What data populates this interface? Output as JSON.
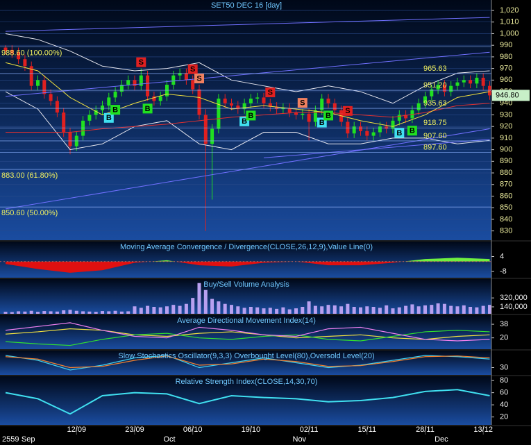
{
  "chart_data": [
    {
      "type": "candlestick",
      "title": "SET50 DEC 16  [day]",
      "grid": true,
      "ylim": [
        822,
        1029
      ],
      "yticks": [
        830,
        840,
        850,
        860,
        870,
        880,
        890,
        900,
        910,
        920,
        930,
        940,
        950,
        960,
        970,
        980,
        990,
        {
          "value": 1000,
          "label": "1,000"
        },
        {
          "value": 1010,
          "label": "1,010"
        },
        {
          "value": 1020,
          "label": "1,020"
        }
      ],
      "up_color": "#20e020",
      "down_color": "#e02020",
      "categories": [
        null,
        null,
        null,
        null,
        null,
        null,
        null,
        null,
        null,
        null,
        null,
        "12/09",
        null,
        null,
        null,
        null,
        null,
        null,
        null,
        null,
        "23/09",
        null,
        null,
        null,
        null,
        null,
        null,
        null,
        null,
        "06/10",
        null,
        null,
        null,
        null,
        null,
        null,
        null,
        null,
        "19/10",
        null,
        null,
        null,
        null,
        null,
        null,
        null,
        null,
        "02/11",
        null,
        null,
        null,
        null,
        null,
        null,
        null,
        null,
        "15/11",
        null,
        null,
        null,
        null,
        null,
        null,
        null,
        null,
        "28/11",
        null,
        null,
        null,
        null,
        null,
        null,
        null,
        null,
        "13/12",
        null
      ],
      "months": [
        "2559",
        null,
        null,
        "Sep",
        null,
        null,
        null,
        null,
        null,
        null,
        null,
        null,
        null,
        null,
        null,
        null,
        null,
        null,
        null,
        null,
        null,
        null,
        null,
        null,
        null,
        "Oct",
        null,
        null,
        null,
        null,
        null,
        null,
        null,
        null,
        null,
        null,
        null,
        null,
        null,
        null,
        null,
        null,
        null,
        null,
        null,
        "Nov",
        null,
        null,
        null,
        null,
        null,
        null,
        null,
        null,
        null,
        null,
        null,
        null,
        null,
        null,
        null,
        null,
        null,
        null,
        null,
        null,
        null,
        "Dec",
        null,
        null,
        null,
        null,
        null,
        null,
        null,
        null
      ],
      "open": [
        988,
        986,
        984,
        978,
        972,
        955,
        960,
        948,
        942,
        932,
        915,
        903,
        912,
        925,
        930,
        934,
        938,
        945,
        950,
        956,
        960,
        955,
        964,
        946,
        942,
        946,
        956,
        964,
        966,
        960,
        952,
        930,
        905,
        918,
        944,
        940,
        938,
        935,
        940,
        944,
        945,
        940,
        937,
        935,
        936,
        932,
        930,
        931,
        924,
        934,
        944,
        940,
        934,
        924,
        914,
        920,
        916,
        912,
        915,
        920,
        918,
        925,
        930,
        927,
        934,
        940,
        946,
        952,
        956,
        950,
        955,
        958,
        960,
        957,
        962,
        955
      ],
      "high": [
        990,
        990,
        988,
        982,
        976,
        964,
        964,
        952,
        946,
        936,
        919,
        916,
        929,
        934,
        938,
        942,
        949,
        954,
        960,
        964,
        964,
        970,
        968,
        950,
        950,
        960,
        968,
        970,
        970,
        964,
        956,
        935,
        922,
        948,
        948,
        944,
        942,
        944,
        948,
        949,
        949,
        944,
        941,
        940,
        940,
        936,
        935,
        935,
        938,
        948,
        948,
        944,
        938,
        928,
        924,
        924,
        920,
        919,
        924,
        924,
        929,
        934,
        934,
        938,
        944,
        950,
        956,
        960,
        960,
        959,
        962,
        964,
        964,
        966,
        966,
        959
      ],
      "low": [
        982,
        979,
        974,
        968,
        951,
        951,
        944,
        938,
        928,
        911,
        896,
        899,
        908,
        921,
        926,
        930,
        934,
        941,
        946,
        952,
        951,
        951,
        942,
        938,
        938,
        942,
        952,
        960,
        956,
        948,
        926,
        830,
        857,
        914,
        936,
        934,
        931,
        931,
        936,
        940,
        936,
        933,
        931,
        931,
        928,
        926,
        926,
        908,
        920,
        930,
        936,
        930,
        920,
        910,
        910,
        912,
        908,
        908,
        911,
        914,
        914,
        921,
        923,
        923,
        930,
        936,
        942,
        948,
        946,
        946,
        951,
        954,
        953,
        953,
        951,
        943
      ],
      "close": [
        985,
        983,
        978,
        972,
        955,
        960,
        948,
        942,
        932,
        915,
        903,
        912,
        925,
        930,
        934,
        938,
        945,
        950,
        956,
        960,
        955,
        964,
        946,
        942,
        946,
        956,
        964,
        966,
        960,
        952,
        930,
        905,
        918,
        944,
        940,
        938,
        935,
        940,
        944,
        945,
        940,
        937,
        935,
        936,
        932,
        930,
        931,
        924,
        934,
        944,
        940,
        934,
        924,
        914,
        920,
        916,
        912,
        915,
        920,
        918,
        925,
        930,
        927,
        934,
        940,
        946,
        952,
        956,
        950,
        955,
        958,
        960,
        957,
        962,
        955,
        946.8
      ],
      "overlays": {
        "x": [
          0,
          5,
          10,
          15,
          20,
          25,
          30,
          35,
          40,
          45,
          50,
          55,
          60,
          65,
          70,
          75
        ],
        "series": [
          {
            "color": "#e8e8f0",
            "values": [
              1000,
              995,
              985,
              972,
              968,
              970,
              975,
              960,
              955,
              950,
              955,
              950,
              940,
              955,
              966,
              968
            ]
          },
          {
            "color": "#e8e8f0",
            "values": [
              950,
              935,
              900,
              905,
              920,
              925,
              905,
              900,
              915,
              915,
              905,
              905,
              910,
              910,
              905,
              908
            ]
          },
          {
            "color": "#e03030",
            "values": [
              915,
              915,
              915,
              918,
              920,
              922,
              925,
              928,
              930,
              932,
              932,
              930,
              928,
              932,
              938,
              940
            ]
          },
          {
            "color": "#f0e040",
            "values": [
              975,
              968,
              945,
              930,
              940,
              948,
              945,
              935,
              938,
              935,
              932,
              925,
              920,
              930,
              945,
              950
            ]
          }
        ]
      },
      "trend_color": "#7070ff",
      "trend_lines": [
        {
          "x": [
            0,
            75
          ],
          "values": [
            1002,
            1014
          ]
        },
        {
          "x": [
            0,
            75
          ],
          "values": [
            946,
            984
          ]
        },
        {
          "x": [
            0,
            75
          ],
          "values": [
            849,
            918
          ]
        },
        {
          "x": [
            40,
            75
          ],
          "values": [
            893,
            909
          ]
        }
      ],
      "level_color": "#f0f060",
      "level_line_color": "#8ab0ff",
      "retracements": [
        {
          "value": 988.6,
          "label": "988.60 (100.00%)"
        },
        {
          "value": 883,
          "label": "883.00 (61.80%)"
        },
        {
          "value": 850.6,
          "label": "850.60 (50.00%)"
        }
      ],
      "levels": [
        {
          "value": 965.63,
          "label": "965.63"
        },
        {
          "value": 951.2,
          "label": "951.20"
        },
        {
          "value": 935.63,
          "label": "935.63"
        },
        {
          "value": 918.75,
          "label": "918.75"
        },
        {
          "value": 907.6,
          "label": "907.60"
        },
        {
          "value": 897.6,
          "label": "897.60"
        }
      ],
      "signals": [
        {
          "index": 21,
          "label": "S",
          "color": "#e02020"
        },
        {
          "index": 29,
          "label": "S",
          "color": "#e02020"
        },
        {
          "index": 30,
          "label": "S",
          "color": "#f08060"
        },
        {
          "index": 41,
          "label": "S",
          "color": "#e02020"
        },
        {
          "index": 46,
          "label": "S",
          "color": "#f08060"
        },
        {
          "index": 53,
          "label": "S",
          "color": "#e02020"
        },
        {
          "index": 16,
          "label": "B",
          "color": "#40e0f0"
        },
        {
          "index": 17,
          "label": "B",
          "color": "#20e020"
        },
        {
          "index": 22,
          "label": "B",
          "color": "#20e020"
        },
        {
          "index": 37,
          "label": "B",
          "color": "#40e0f0"
        },
        {
          "index": 38,
          "label": "B",
          "color": "#20e020"
        },
        {
          "index": 49,
          "label": "B",
          "color": "#40e0f0"
        },
        {
          "index": 50,
          "label": "B",
          "color": "#20e020"
        },
        {
          "index": 61,
          "label": "B",
          "color": "#40e0f0"
        },
        {
          "index": 63,
          "label": "B",
          "color": "#20e020"
        }
      ],
      "last_price": {
        "value": 946.8,
        "label": "946.80"
      }
    },
    {
      "type": "area",
      "title": "Moving Average Convergence / Divergence(CLOSE,26,12,9),Value Line(0)",
      "ylim": [
        -13,
        16
      ],
      "yticks": [
        4,
        -8
      ],
      "color_positive": "#70f040",
      "color_negative": "#e01010",
      "x": [
        0,
        5,
        10,
        15,
        20,
        25,
        30,
        35,
        40,
        45,
        50,
        55,
        60,
        65,
        70,
        75
      ],
      "values": [
        -2,
        -6,
        -9,
        -7,
        -1,
        1,
        -3,
        -4,
        -1,
        0,
        -3,
        -3,
        -1,
        2,
        3,
        2
      ]
    },
    {
      "type": "bar",
      "title": "Buy/Sell Volume Analysis",
      "ylim": [
        0,
        700000
      ],
      "yticks": [
        {
          "value": 320000,
          "label": "320,000"
        },
        {
          "value": 140000,
          "label": "140,000"
        }
      ],
      "color": "#b8a0f0",
      "values": [
        40000,
        35000,
        50000,
        45000,
        60000,
        40000,
        55000,
        50000,
        45000,
        70000,
        80000,
        60000,
        50000,
        45000,
        40000,
        55000,
        50000,
        60000,
        45000,
        50000,
        150000,
        120000,
        160000,
        140000,
        130000,
        150000,
        180000,
        160000,
        200000,
        320000,
        620000,
        480000,
        300000,
        250000,
        200000,
        180000,
        150000,
        120000,
        140000,
        130000,
        110000,
        120000,
        100000,
        130000,
        90000,
        110000,
        140000,
        250000,
        160000,
        150000,
        180000,
        170000,
        150000,
        200000,
        140000,
        130000,
        150000,
        140000,
        120000,
        170000,
        110000,
        130000,
        160000,
        190000,
        150000,
        170000,
        180000,
        210000,
        200000,
        160000,
        150000,
        170000,
        140000,
        130000,
        160000,
        180000
      ]
    },
    {
      "type": "line",
      "title": "Average Directional Movement Index(14)",
      "ylim": [
        5,
        50
      ],
      "yticks": [
        38,
        20
      ],
      "x": [
        0,
        5,
        10,
        15,
        20,
        25,
        30,
        35,
        40,
        45,
        50,
        55,
        60,
        65,
        70,
        75
      ],
      "series": [
        {
          "color": "#f0e040",
          "values": [
            25,
            28,
            32,
            30,
            24,
            22,
            26,
            28,
            24,
            20,
            22,
            24,
            20,
            18,
            22,
            24
          ]
        },
        {
          "color": "#30e030",
          "values": [
            15,
            12,
            10,
            18,
            24,
            26,
            20,
            18,
            22,
            24,
            18,
            16,
            22,
            28,
            30,
            28
          ]
        },
        {
          "color": "#f080f0",
          "values": [
            30,
            35,
            40,
            30,
            22,
            20,
            34,
            30,
            24,
            22,
            32,
            34,
            26,
            18,
            16,
            18
          ]
        }
      ]
    },
    {
      "type": "line",
      "title": "Slow Stochastics Oscillator(9,3,3) Overbought Level(80),Oversold Level(20)",
      "ylim": [
        0,
        100
      ],
      "yticks": [
        30
      ],
      "x": [
        0,
        5,
        10,
        15,
        20,
        25,
        30,
        35,
        40,
        45,
        50,
        55,
        60,
        65,
        70,
        75
      ],
      "series": [
        {
          "color": "#40d0f0",
          "values": [
            80,
            60,
            20,
            40,
            70,
            80,
            30,
            50,
            70,
            50,
            30,
            40,
            60,
            80,
            75,
            65
          ]
        },
        {
          "color": "#f08030",
          "values": [
            75,
            65,
            30,
            35,
            60,
            78,
            40,
            45,
            65,
            55,
            35,
            38,
            55,
            75,
            78,
            70
          ]
        }
      ]
    },
    {
      "type": "line",
      "title": "Relative Strength Index(CLOSE,14,30,70)",
      "ylim": [
        7,
        87
      ],
      "yticks": [
        80,
        60,
        40,
        20
      ],
      "x": [
        0,
        5,
        10,
        15,
        20,
        25,
        30,
        35,
        40,
        45,
        50,
        55,
        60,
        65,
        70,
        75
      ],
      "series": [
        {
          "color": "#40e0f0",
          "values": [
            60,
            50,
            25,
            55,
            60,
            58,
            42,
            55,
            52,
            50,
            45,
            47,
            52,
            62,
            65,
            55
          ]
        }
      ]
    }
  ]
}
